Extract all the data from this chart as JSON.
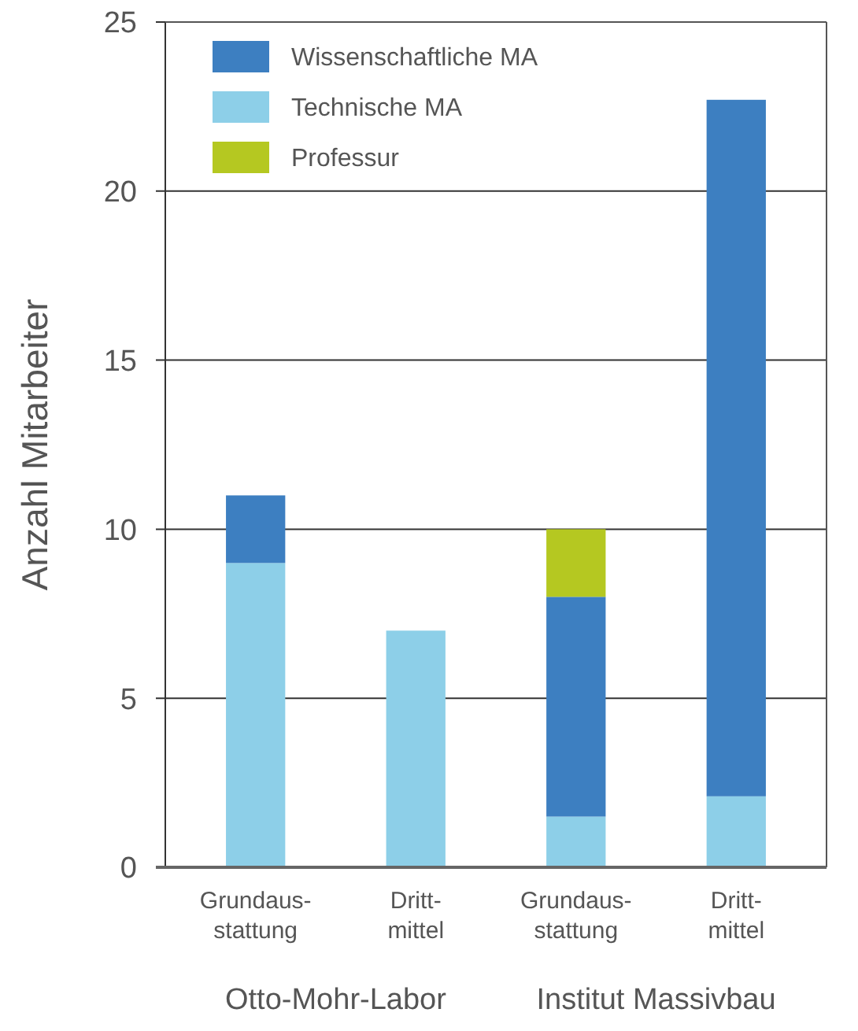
{
  "chart_data": {
    "type": "bar",
    "ylabel": "Anzahl Mitarbeiter",
    "categories": [
      "Grundaus-\nstattung",
      "Dritt-\nmittel",
      "Grundaus-\nstattung",
      "Dritt-\nmittel"
    ],
    "series": [
      {
        "name": "Technische MA",
        "color": "#8dcfe8",
        "values": [
          9,
          7,
          1.5,
          2.1
        ]
      },
      {
        "name": "Wissenschaftliche MA",
        "color": "#3d7fc1",
        "values": [
          2,
          0,
          6.5,
          20.6
        ]
      },
      {
        "name": "Professur",
        "color": "#b5c821",
        "values": [
          0,
          0,
          2,
          0
        ]
      }
    ],
    "stacked": true,
    "ylim": [
      0,
      25
    ],
    "yticks": [
      0,
      5,
      10,
      15,
      20,
      25
    ],
    "grid": "y",
    "legend": "top left",
    "annotations": [
      "Otto-Mohr-Labor",
      "Institut Massivbau"
    ]
  }
}
